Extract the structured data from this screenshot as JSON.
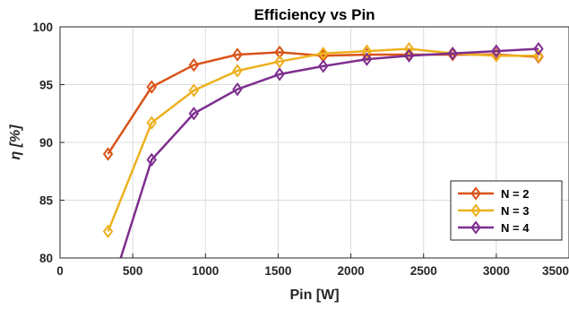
{
  "chart_data": {
    "type": "line",
    "title": "Efficiency vs Pin",
    "xlabel": "Pin [W]",
    "ylabel": "η [%]",
    "xlim": [
      0,
      3500
    ],
    "ylim": [
      80,
      100
    ],
    "xticks": [
      0,
      500,
      1000,
      1500,
      2000,
      2500,
      3000,
      3500
    ],
    "yticks": [
      80,
      85,
      90,
      95,
      100
    ],
    "grid": true,
    "legend_position": "bottom-right",
    "marker": "diamond",
    "series": [
      {
        "name": "N = 2",
        "color": "#d95319",
        "x": [
          330,
          630,
          920,
          1220,
          1510,
          1810,
          2110,
          2400,
          2700,
          3000,
          3290
        ],
        "y": [
          89.0,
          94.8,
          96.7,
          97.6,
          97.8,
          97.5,
          97.6,
          97.6,
          97.6,
          97.6,
          97.4
        ]
      },
      {
        "name": "N = 3",
        "color": "#edb120",
        "x": [
          330,
          630,
          920,
          1220,
          1510,
          1810,
          2110,
          2400,
          2700,
          3000,
          3290
        ],
        "y": [
          82.3,
          91.7,
          94.5,
          96.2,
          97.0,
          97.7,
          97.9,
          98.1,
          97.7,
          97.5,
          97.5
        ]
      },
      {
        "name": "N = 4",
        "color": "#7e2f8e",
        "x": [
          410,
          630,
          920,
          1220,
          1510,
          1810,
          2110,
          2400,
          2700,
          3000,
          3290
        ],
        "y": [
          79.7,
          88.5,
          92.5,
          94.6,
          95.9,
          96.6,
          97.2,
          97.5,
          97.7,
          97.9,
          98.1
        ]
      }
    ]
  }
}
